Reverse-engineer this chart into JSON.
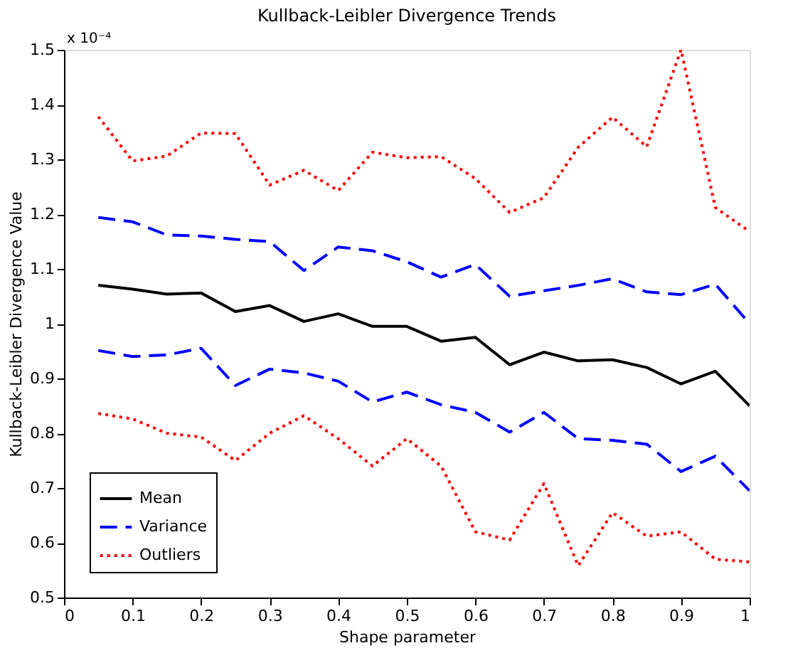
{
  "chart_data": {
    "type": "line",
    "title": "Kullback-Leibler Divergence Trends",
    "xlabel": "Shape parameter",
    "ylabel": "Kullback-Leibler Divergence Value",
    "annotations": [
      "x 10⁻⁴"
    ],
    "x": [
      0.05,
      0.1,
      0.15,
      0.2,
      0.25,
      0.3,
      0.35,
      0.4,
      0.45,
      0.5,
      0.55,
      0.6,
      0.65,
      0.7,
      0.75,
      0.8,
      0.85,
      0.9,
      0.95,
      1.0
    ],
    "series": [
      {
        "name": "Mean",
        "color": "#000000",
        "line_style": "solid",
        "values": [
          1.07,
          1.063,
          1.054,
          1.056,
          1.022,
          1.033,
          1.004,
          1.018,
          0.995,
          0.995,
          0.968,
          0.975,
          0.925,
          0.948,
          0.932,
          0.934,
          0.92,
          0.89,
          0.913,
          0.85
        ]
      },
      {
        "name": "Variance",
        "color": "#0000ff",
        "line_style": "dashed",
        "values": [
          1.194,
          1.186,
          1.162,
          1.16,
          1.154,
          1.15,
          1.097,
          1.14,
          1.133,
          1.113,
          1.085,
          1.108,
          1.05,
          1.06,
          1.07,
          1.082,
          1.058,
          1.053,
          1.072,
          1.0
        ]
      },
      {
        "color": "#0000ff",
        "line_style": "dashed",
        "values": [
          0.951,
          0.94,
          0.943,
          0.955,
          0.887,
          0.917,
          0.91,
          0.895,
          0.857,
          0.875,
          0.852,
          0.838,
          0.802,
          0.838,
          0.79,
          0.787,
          0.78,
          0.73,
          0.758,
          0.695
        ]
      },
      {
        "name": "Outliers",
        "color": "#ff0000",
        "line_style": "dotted",
        "values": [
          1.378,
          1.297,
          1.306,
          1.348,
          1.347,
          1.253,
          1.28,
          1.243,
          1.313,
          1.303,
          1.305,
          1.265,
          1.203,
          1.23,
          1.322,
          1.377,
          1.323,
          1.5,
          1.212,
          1.168
        ]
      },
      {
        "color": "#ff0000",
        "line_style": "dotted",
        "values": [
          0.836,
          0.826,
          0.8,
          0.793,
          0.75,
          0.8,
          0.832,
          0.79,
          0.74,
          0.79,
          0.74,
          0.62,
          0.605,
          0.708,
          0.558,
          0.655,
          0.612,
          0.62,
          0.57,
          0.565
        ]
      }
    ],
    "xlim": [
      0,
      1
    ],
    "xticks": [
      0,
      0.1,
      0.2,
      0.3,
      0.4,
      0.5,
      0.6,
      0.7,
      0.8,
      0.9,
      1
    ],
    "ylim": [
      0.5,
      1.5
    ],
    "yticks": [
      0.5,
      0.6,
      0.7,
      0.8,
      0.9,
      1,
      1.1,
      1.2,
      1.3,
      1.4,
      1.5
    ],
    "grid": false,
    "legend": "bottom left",
    "marker": "none"
  }
}
